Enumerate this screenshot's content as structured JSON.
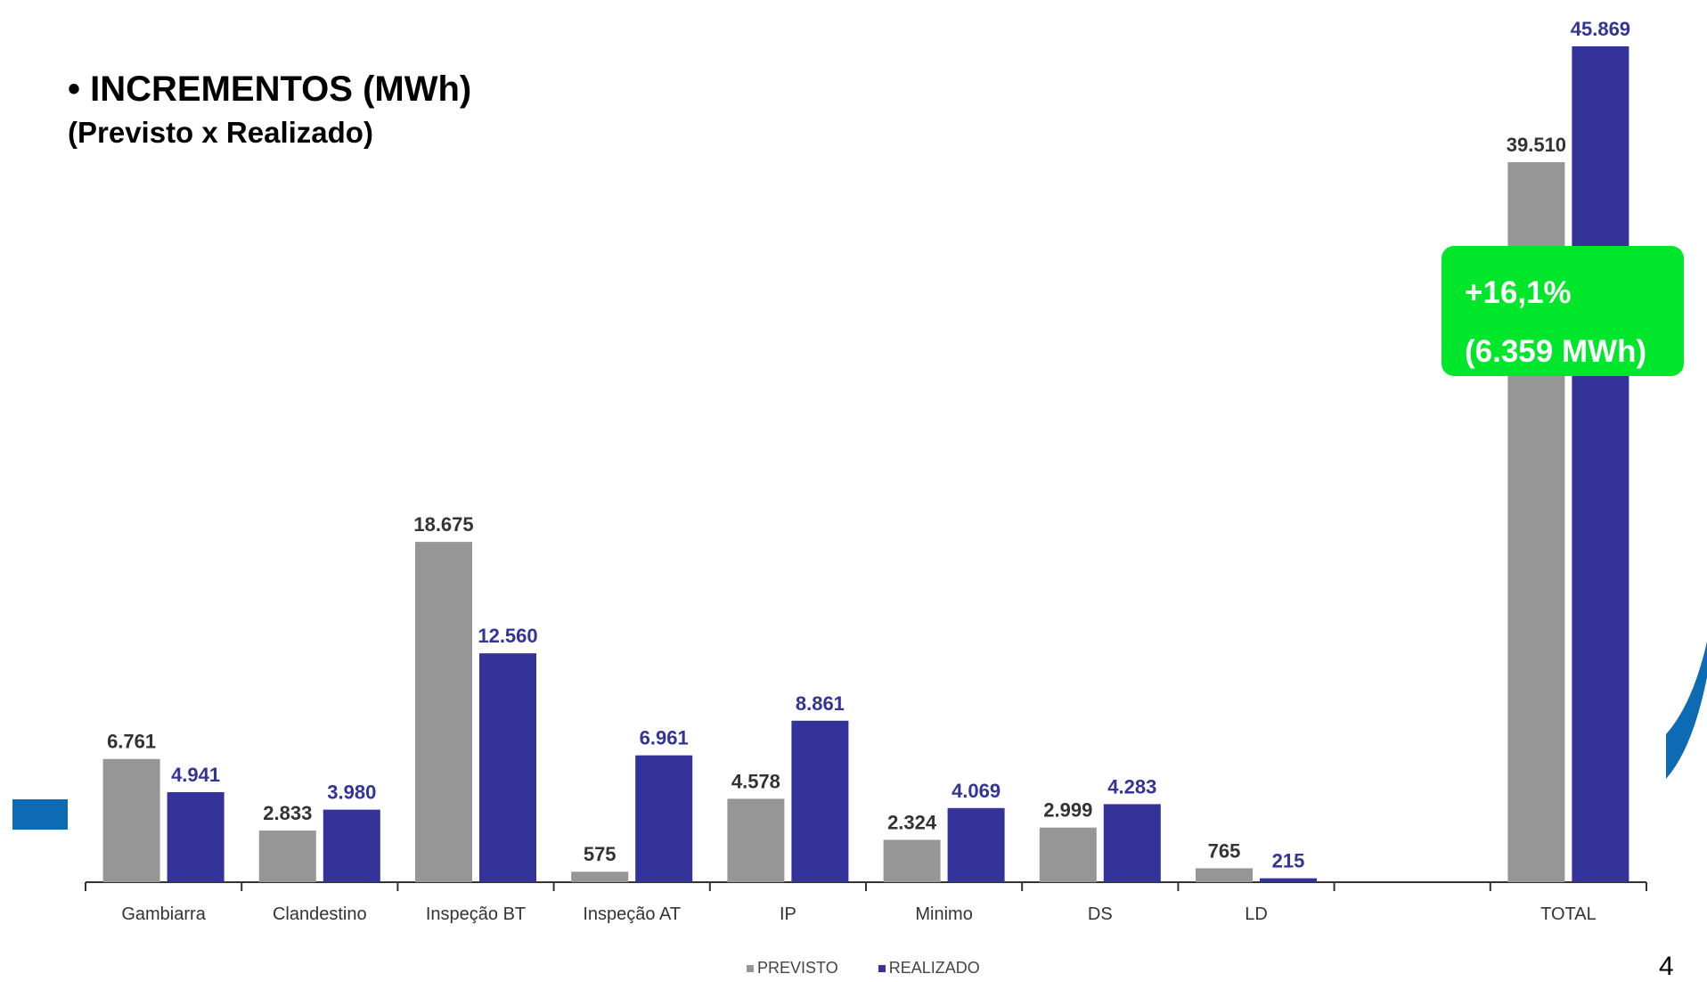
{
  "title": "• INCREMENTOS (MWh)",
  "subtitle": "(Previsto x Realizado)",
  "callout": {
    "line1": "+16,1%",
    "line2": "(6.359 MWh)",
    "color": "#00e62b"
  },
  "page_number": "4",
  "legend": {
    "previsto": "PREVISTO",
    "realizado": "REALIZADO"
  },
  "colors": {
    "previsto": "#969696",
    "realizado": "#333399",
    "accent": "#0c6bb3"
  },
  "chart_data": {
    "type": "bar",
    "categories": [
      "Gambiarra",
      "Clandestino",
      "Inspeção BT",
      "Inspeção AT",
      "IP",
      "Minimo",
      "DS",
      "LD",
      "",
      "TOTAL"
    ],
    "series": [
      {
        "name": "PREVISTO",
        "values": [
          6761,
          2833,
          18675,
          575,
          4578,
          2324,
          2999,
          765,
          null,
          39510
        ],
        "labels": [
          "6.761",
          "2.833",
          "18.675",
          "575",
          "4.578",
          "2.324",
          "2.999",
          "765",
          "",
          "39.510"
        ]
      },
      {
        "name": "REALIZADO",
        "values": [
          4941,
          3980,
          12560,
          6961,
          8861,
          4069,
          4283,
          215,
          null,
          45869
        ],
        "labels": [
          "4.941",
          "3.980",
          "12.560",
          "6.961",
          "8.861",
          "4.069",
          "4.283",
          "215",
          "",
          "45.869"
        ]
      }
    ],
    "ylim": [
      0,
      45869
    ],
    "grid": false,
    "legend_position": "bottom"
  }
}
